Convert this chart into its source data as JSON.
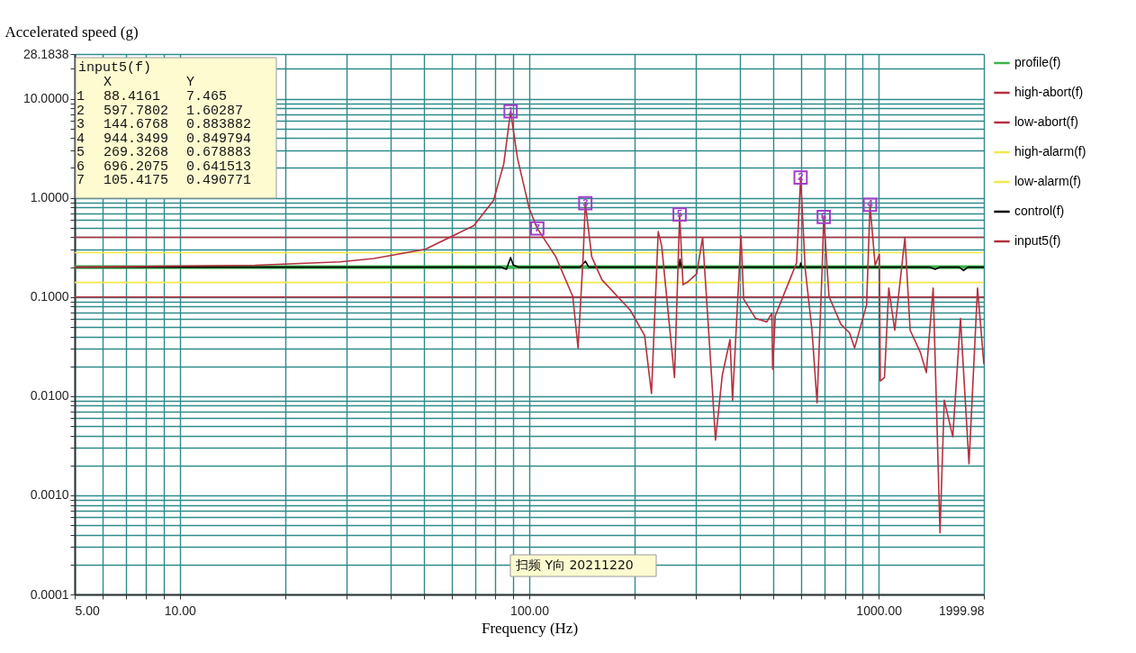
{
  "chart_data": {
    "type": "line",
    "xlabel": "Frequency (Hz)",
    "ylabel": "Accelerated speed (g)",
    "log": "xy",
    "grid": true,
    "legend": "right",
    "line_style": "solid",
    "xlim": [
      5,
      1999.98
    ],
    "ylim": [
      0.0001,
      28.1838
    ],
    "xticks": [
      {
        "value": 5,
        "label": "5.00"
      },
      {
        "value": 6,
        "label": null
      },
      {
        "value": 7,
        "label": null
      },
      {
        "value": 8,
        "label": null
      },
      {
        "value": 9,
        "label": null
      },
      {
        "value": 10,
        "label": "10.00"
      },
      {
        "value": 20,
        "label": null
      },
      {
        "value": 30,
        "label": null
      },
      {
        "value": 40,
        "label": null
      },
      {
        "value": 50,
        "label": null
      },
      {
        "value": 60,
        "label": null
      },
      {
        "value": 70,
        "label": null
      },
      {
        "value": 80,
        "label": null
      },
      {
        "value": 90,
        "label": null
      },
      {
        "value": 100,
        "label": "100.00"
      },
      {
        "value": 200,
        "label": null
      },
      {
        "value": 300,
        "label": null
      },
      {
        "value": 400,
        "label": null
      },
      {
        "value": 500,
        "label": null
      },
      {
        "value": 600,
        "label": null
      },
      {
        "value": 700,
        "label": null
      },
      {
        "value": 800,
        "label": null
      },
      {
        "value": 900,
        "label": null
      },
      {
        "value": 1000,
        "label": "1000.00"
      },
      1999.98
    ],
    "yticks": [
      {
        "value": 0.0001,
        "label": "0.0001"
      },
      {
        "value": 0.0002,
        "label": null
      },
      {
        "value": 0.0003,
        "label": null
      },
      {
        "value": 0.0004,
        "label": null
      },
      {
        "value": 0.0005,
        "label": null
      },
      {
        "value": 0.0006,
        "label": null
      },
      {
        "value": 0.0007,
        "label": null
      },
      {
        "value": 0.0008,
        "label": null
      },
      {
        "value": 0.0009,
        "label": null
      },
      {
        "value": 0.001,
        "label": "0.0010"
      },
      {
        "value": 0.002,
        "label": null
      },
      {
        "value": 0.003,
        "label": null
      },
      {
        "value": 0.004,
        "label": null
      },
      {
        "value": 0.005,
        "label": null
      },
      {
        "value": 0.006,
        "label": null
      },
      {
        "value": 0.007,
        "label": null
      },
      {
        "value": 0.008,
        "label": null
      },
      {
        "value": 0.009,
        "label": null
      },
      {
        "value": 0.01,
        "label": "0.0100"
      },
      {
        "value": 0.02,
        "label": null
      },
      {
        "value": 0.03,
        "label": null
      },
      {
        "value": 0.04,
        "label": null
      },
      {
        "value": 0.05,
        "label": null
      },
      {
        "value": 0.06,
        "label": null
      },
      {
        "value": 0.07,
        "label": null
      },
      {
        "value": 0.08,
        "label": null
      },
      {
        "value": 0.09,
        "label": null
      },
      {
        "value": 0.1,
        "label": "0.1000"
      },
      {
        "value": 0.2,
        "label": null
      },
      {
        "value": 0.3,
        "label": null
      },
      {
        "value": 0.4,
        "label": null
      },
      {
        "value": 0.5,
        "label": null
      },
      {
        "value": 0.6,
        "label": null
      },
      {
        "value": 0.7,
        "label": null
      },
      {
        "value": 0.8,
        "label": null
      },
      {
        "value": 0.9,
        "label": null
      },
      {
        "value": 1,
        "label": "1.0000"
      },
      {
        "value": 2,
        "label": null
      },
      {
        "value": 3,
        "label": null
      },
      {
        "value": 4,
        "label": null
      },
      {
        "value": 5,
        "label": null
      },
      {
        "value": 6,
        "label": null
      },
      {
        "value": 7,
        "label": null
      },
      {
        "value": 8,
        "label": null
      },
      {
        "value": 9,
        "label": null
      },
      {
        "value": 10,
        "label": "10.0000"
      },
      {
        "value": 20,
        "label": null
      },
      28.1838
    ],
    "annotations": [
      "X",
      "Y",
      "扫频 Y向 20211220",
      "88.4161",
      "7.465",
      "597.7802",
      "1.60287",
      "144.6768",
      "0.883882",
      "944.3499",
      "0.849794",
      "269.3268",
      "0.678883",
      "696.2075",
      "0.641513",
      "105.4175",
      "0.490771",
      {
        "text": "1",
        "x": 88.4161,
        "y": 7.465
      },
      {
        "text": "2",
        "x": 597.7802,
        "y": 1.60287
      },
      {
        "text": "3",
        "x": 144.6768,
        "y": 0.883882
      },
      {
        "text": "4",
        "x": 944.3499,
        "y": 0.849794
      },
      {
        "text": "5",
        "x": 269.3268,
        "y": 0.678883
      },
      {
        "text": "6",
        "x": 696.2075,
        "y": 0.641513
      },
      {
        "text": "7",
        "x": 105.4175,
        "y": 0.490771
      }
    ],
    "series": [
      {
        "name": "profile(f)",
        "color": "#3cb44b",
        "x": [
          5,
          1999.98
        ],
        "values": [
          0.2,
          0.2
        ]
      },
      {
        "name": "high-abort(f)",
        "color": "#b5303f",
        "x": [
          5,
          1999.98
        ],
        "values": [
          0.4,
          0.4
        ]
      },
      {
        "name": "low-abort(f)",
        "color": "#b5303f",
        "x": [
          5,
          1999.98
        ],
        "values": [
          0.1,
          0.1
        ]
      },
      {
        "name": "high-alarm(f)",
        "color": "#f2e84a",
        "x": [
          5,
          1999.98
        ],
        "values": [
          0.28,
          0.28
        ]
      },
      {
        "name": "low-alarm(f)",
        "color": "#f2e84a",
        "x": [
          5,
          1999.98
        ],
        "values": [
          0.14,
          0.14
        ]
      },
      {
        "name": "control(f)",
        "color": "#000000",
        "x": [
          5,
          83,
          86,
          88.4,
          90,
          93,
          100,
          140,
          144.7,
          148,
          268,
          270,
          272,
          595,
          598,
          600,
          1000,
          1400,
          1450,
          1500,
          1700,
          1750,
          1800,
          1999.98
        ],
        "values": [
          0.2,
          0.2,
          0.19,
          0.25,
          0.21,
          0.2,
          0.2,
          0.2,
          0.23,
          0.2,
          0.2,
          0.24,
          0.2,
          0.2,
          0.22,
          0.2,
          0.2,
          0.2,
          0.19,
          0.2,
          0.2,
          0.185,
          0.2,
          0.2
        ]
      },
      {
        "name": "input5(f)",
        "color": "#b5303f",
        "x": [
          5,
          16.4,
          28.7,
          35.9,
          50.4,
          69.4,
          79.0,
          84.5,
          88.4161,
          92.5,
          100.0,
          105.4175,
          119.1,
          133.2,
          137.9,
          142.6,
          144.6768,
          150.9,
          161.4,
          194.4,
          213.8,
          223.7,
          233.9,
          239.3,
          260.4,
          269.3268,
          275.4,
          283.3,
          301.3,
          313.4,
          333.4,
          341.1,
          356.8,
          375.4,
          381.7,
          403.6,
          410.7,
          444.4,
          478.1,
          494.4,
          497.2,
          505.8,
          556.5,
          582.1,
          597.7802,
          615.8,
          644.2,
          666.2,
          689.1,
          696.2075,
          720.8,
          779.8,
          825.0,
          853.2,
          923.2,
          944.3499,
          976.6,
          1004.6,
          1010.4,
          1038.9,
          1068.6,
          1111.5,
          1189.0,
          1230.3,
          1315.6,
          1368.5,
          1431.7,
          1497.8,
          1540.4,
          1629.4,
          1714.1,
          1813.2,
          1918.0,
          1999.98
        ],
        "values": [
          0.2,
          0.209,
          0.226,
          0.244,
          0.303,
          0.524,
          0.943,
          2.19,
          7.465,
          2.51,
          0.775,
          0.490771,
          0.254,
          0.101,
          0.0306,
          0.254,
          0.883882,
          0.254,
          0.149,
          0.0738,
          0.041,
          0.0106,
          0.457,
          0.327,
          0.0154,
          0.678883,
          0.133,
          0.141,
          0.171,
          0.398,
          0.0134,
          0.0036,
          0.0163,
          0.0372,
          0.0091,
          0.414,
          0.0952,
          0.0607,
          0.0561,
          0.0683,
          0.0187,
          0.0644,
          0.149,
          0.221,
          1.60287,
          0.197,
          0.0461,
          0.00855,
          0.197,
          0.641513,
          0.101,
          0.0529,
          0.0435,
          0.0306,
          0.083,
          0.849794,
          0.209,
          0.269,
          0.0142,
          0.0154,
          0.123,
          0.0461,
          0.398,
          0.0461,
          0.0277,
          0.0173,
          0.123,
          0.00042,
          0.0091,
          0.0039,
          0.0607,
          0.00208,
          0.123,
          0.021
        ]
      },
      {
        "type": "scatter",
        "color": "#a43cc8",
        "x": [
          88.4161,
          597.7802,
          144.6768,
          944.3499,
          269.3268,
          696.2075,
          105.4175
        ],
        "values": [
          7.465,
          1.60287,
          0.883882,
          0.849794,
          0.678883,
          0.641513,
          0.490771
        ]
      }
    ]
  }
}
